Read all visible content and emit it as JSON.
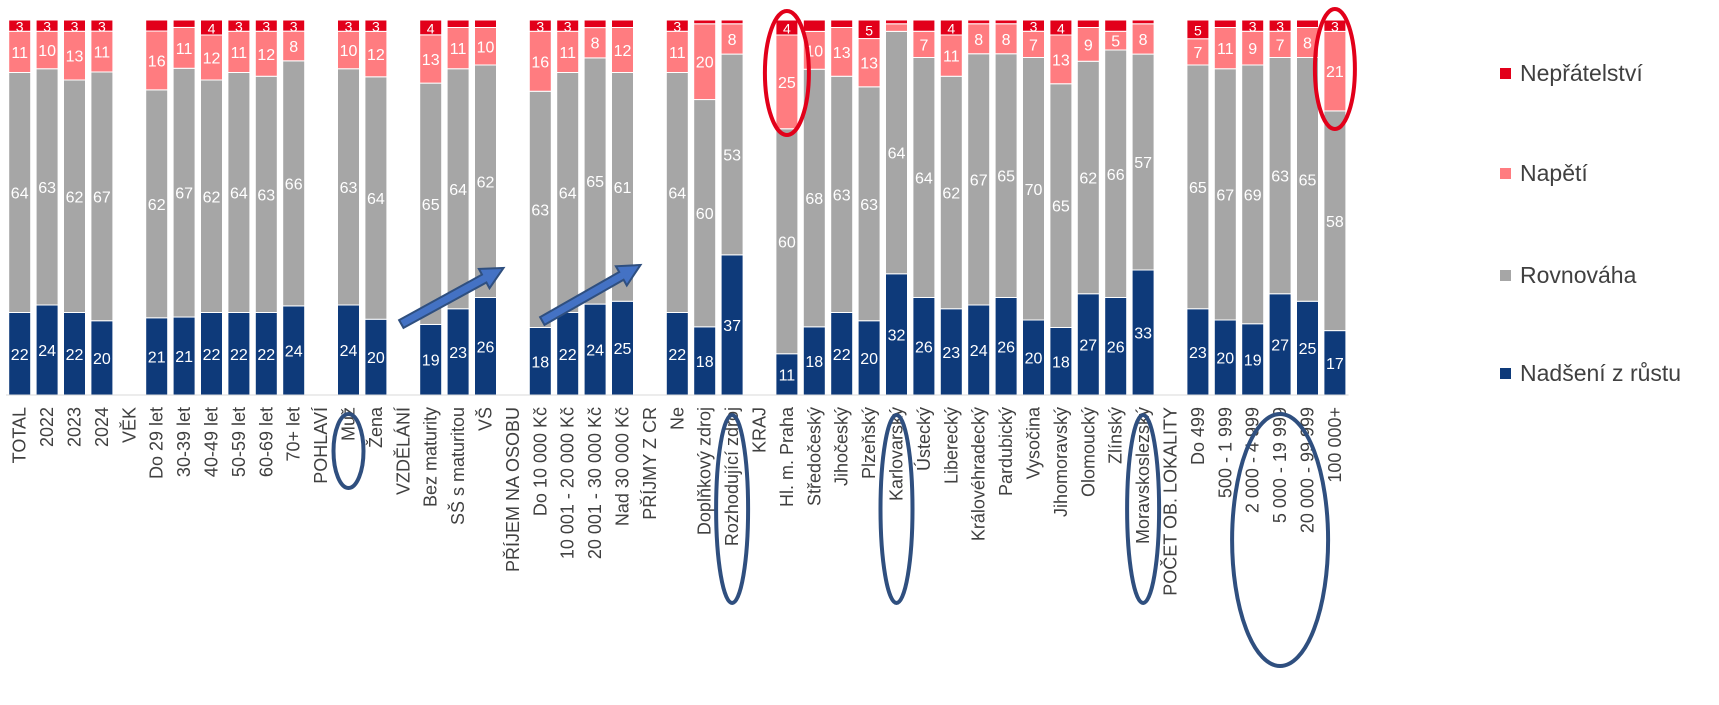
{
  "chart_data": {
    "type": "bar",
    "stacked": true,
    "normalized": true,
    "ylim": [
      0,
      100
    ],
    "grid": false,
    "legend_position": "right",
    "categories": [
      "TOTAL",
      "2022",
      "2023",
      "2024",
      "VĚK",
      "Do 29 let",
      "30-39 let",
      "40-49 let",
      "50-59 let",
      "60-69 let",
      "70+ let",
      "POHLAVÍ",
      "Muž",
      "Žena",
      "VZDĚLÁNÍ",
      "Bez maturity",
      "SŠ s maturitou",
      "VŠ",
      "PŘÍJEM NA OSOBU",
      "Do 10 000 Kč",
      "10 001 - 20 000 Kč",
      "20 001 - 30 000 Kč",
      "Nad 30 000 Kč",
      "PŘÍJMY Z CR",
      "Ne",
      "Doplňkový zdroj",
      "Rozhodující zdroj",
      "KRAJ",
      "Hl. m. Praha",
      "Středočeský",
      "Jihočeský",
      "Plzeňský",
      "Karlovarský",
      "Ústecký",
      "Liberecký",
      "Královéhradecký",
      "Pardubický",
      "Vysočina",
      "Jihomoravský",
      "Olomoucký",
      "Zlínský",
      "Moravskoslezský",
      "POČET OB. LOKALITY",
      "Do 499",
      "500 - 1 999",
      "2 000 - 4 999",
      "5 000 - 19 999",
      "20 000 - 99 999",
      "100 000+"
    ],
    "series": [
      {
        "name": "Nadšení z růstu",
        "color": "#0e3a7a",
        "values": [
          22,
          24,
          22,
          20,
          null,
          21,
          21,
          22,
          22,
          22,
          24,
          null,
          24,
          20,
          null,
          19,
          23,
          26,
          null,
          18,
          22,
          24,
          25,
          null,
          22,
          18,
          37,
          null,
          11,
          18,
          22,
          20,
          32,
          26,
          23,
          24,
          26,
          20,
          18,
          27,
          26,
          33,
          null,
          23,
          20,
          19,
          27,
          25,
          17
        ]
      },
      {
        "name": "Rovnováha",
        "color": "#a6a6a6",
        "values": [
          64,
          63,
          62,
          67,
          null,
          62,
          67,
          62,
          64,
          63,
          66,
          null,
          63,
          64,
          null,
          65,
          64,
          62,
          null,
          63,
          64,
          65,
          61,
          null,
          64,
          60,
          53,
          null,
          60,
          68,
          63,
          63,
          64,
          64,
          62,
          67,
          65,
          70,
          65,
          62,
          66,
          57,
          null,
          65,
          67,
          69,
          63,
          65,
          58
        ]
      },
      {
        "name": "Napětí",
        "color": "#ff7c80",
        "values": [
          11,
          10,
          13,
          11,
          null,
          16,
          11,
          12,
          11,
          12,
          8,
          null,
          10,
          12,
          null,
          13,
          11,
          10,
          null,
          16,
          11,
          8,
          12,
          null,
          11,
          20,
          8,
          null,
          25,
          10,
          13,
          13,
          2,
          7,
          11,
          8,
          8,
          7,
          13,
          9,
          5,
          8,
          null,
          7,
          11,
          9,
          7,
          8,
          21
        ]
      },
      {
        "name": "Nepřátelství",
        "color": "#e2001a",
        "values": [
          3,
          3,
          3,
          3,
          null,
          3,
          2,
          4,
          3,
          3,
          3,
          null,
          3,
          3,
          null,
          4,
          2,
          2,
          null,
          3,
          3,
          2,
          2,
          null,
          3,
          1,
          1,
          null,
          4,
          3,
          2,
          5,
          1,
          3,
          4,
          1,
          1,
          3,
          4,
          2,
          3,
          1,
          null,
          5,
          2,
          3,
          3,
          2,
          3
        ]
      }
    ],
    "labels_shown": [
      [
        true,
        true,
        true,
        true,
        false,
        true,
        true,
        true,
        true,
        true,
        true,
        false,
        true,
        true,
        false,
        true,
        true,
        true,
        false,
        true,
        true,
        true,
        true,
        false,
        true,
        true,
        true,
        false,
        true,
        true,
        true,
        true,
        true,
        true,
        true,
        true,
        true,
        true,
        true,
        true,
        true,
        true,
        false,
        true,
        true,
        true,
        true,
        true,
        true
      ],
      [
        true,
        true,
        true,
        true,
        false,
        true,
        true,
        true,
        true,
        true,
        true,
        false,
        true,
        true,
        false,
        true,
        true,
        true,
        false,
        true,
        true,
        true,
        true,
        false,
        true,
        true,
        true,
        false,
        true,
        true,
        true,
        true,
        true,
        true,
        true,
        true,
        true,
        true,
        true,
        true,
        true,
        true,
        false,
        true,
        true,
        true,
        true,
        true,
        true
      ],
      [
        true,
        true,
        true,
        true,
        false,
        true,
        true,
        true,
        true,
        true,
        true,
        false,
        true,
        true,
        false,
        true,
        true,
        true,
        false,
        true,
        true,
        true,
        true,
        false,
        true,
        true,
        true,
        false,
        true,
        true,
        true,
        true,
        false,
        true,
        true,
        true,
        true,
        true,
        true,
        true,
        true,
        true,
        false,
        true,
        true,
        true,
        true,
        true,
        true
      ],
      [
        true,
        true,
        true,
        true,
        false,
        false,
        false,
        true,
        true,
        true,
        true,
        false,
        true,
        true,
        false,
        true,
        false,
        false,
        false,
        true,
        true,
        false,
        false,
        false,
        true,
        false,
        false,
        false,
        true,
        false,
        false,
        true,
        false,
        false,
        true,
        false,
        false,
        true,
        true,
        false,
        false,
        false,
        false,
        true,
        false,
        true,
        true,
        false,
        true
      ]
    ]
  },
  "annotations": {
    "ellipse_colors": {
      "red": "#e2001a",
      "blue": "#2f4f7f"
    },
    "arrow_color": "#4472c4"
  }
}
